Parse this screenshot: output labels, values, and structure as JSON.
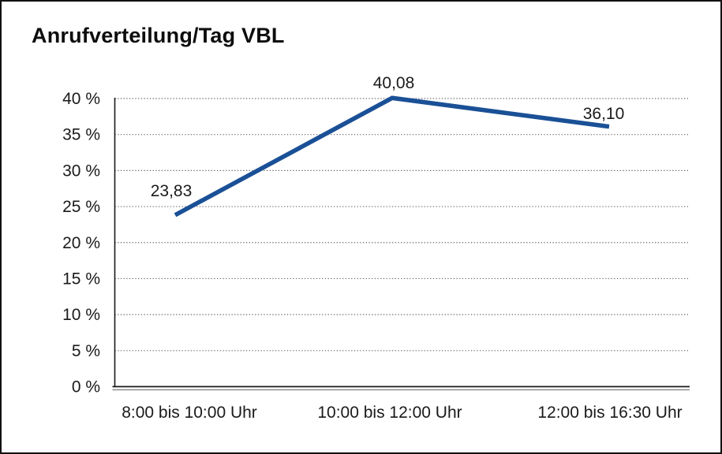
{
  "window": {
    "background": "#ffffff",
    "frame_border_color": "#111111"
  },
  "chart_data": {
    "type": "line",
    "title": "Anrufverteilung/Tag VBL",
    "categories": [
      "8:00 bis 10:00 Uhr",
      "10:00 bis 12:00 Uhr",
      "12:00 bis 16:30 Uhr"
    ],
    "values": [
      23.83,
      40.08,
      36.1
    ],
    "point_labels": [
      "23,83",
      "40,08",
      "36,10"
    ],
    "xlabel": "",
    "ylabel": "",
    "ylim": [
      0,
      40
    ],
    "ytick_step": 5,
    "ytick_labels": [
      "0 %",
      "5 %",
      "10 %",
      "15 %",
      "20 %",
      "25 %",
      "30 %",
      "35 %",
      "40 %"
    ],
    "grid": "dotted-horizontal",
    "legend_position": "none",
    "colors": {
      "series_line": "#1a5096",
      "grid_dots": "#666666",
      "axis_line": "#1a1a1a",
      "axis_shadow": "#8c8c8c",
      "text": "#1a1a1a"
    }
  }
}
